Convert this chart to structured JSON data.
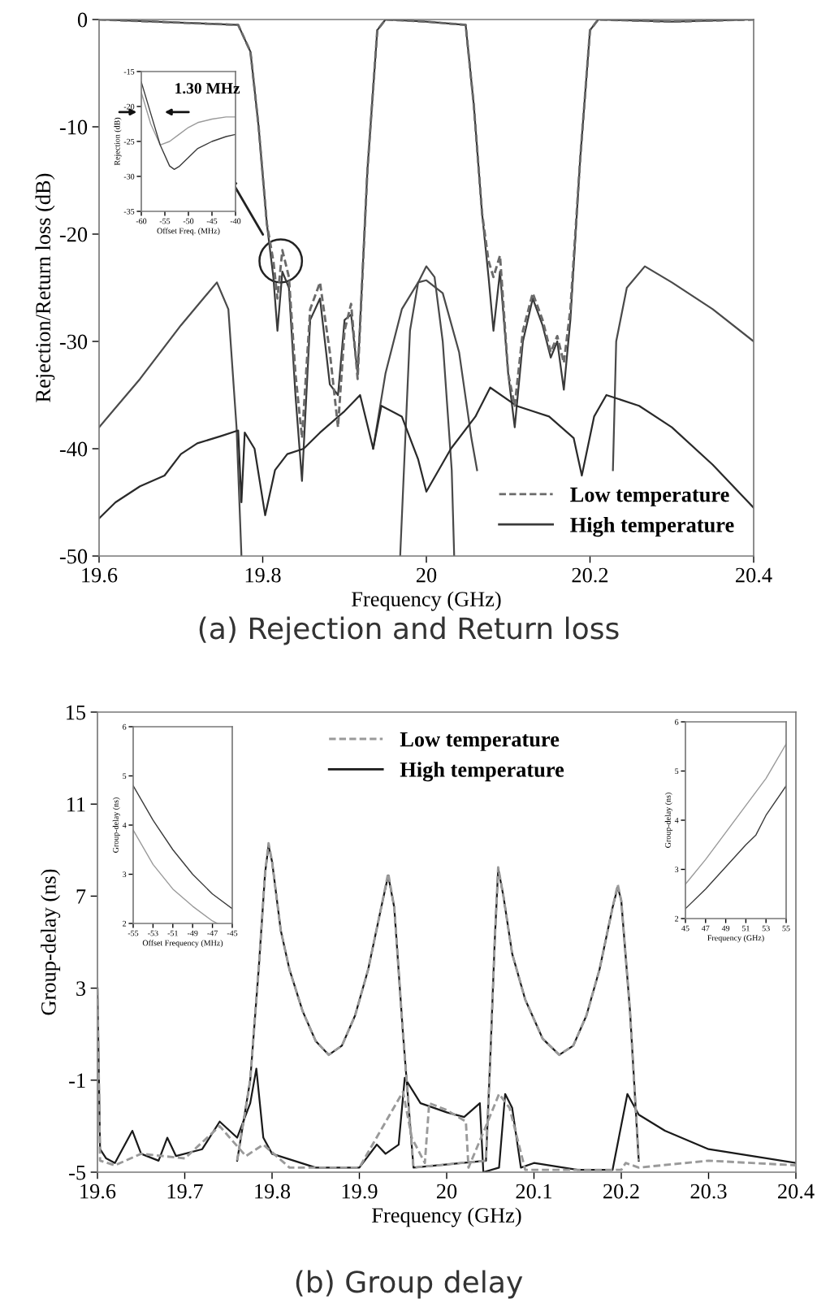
{
  "chart_data": [
    {
      "type": "line",
      "title": "(a) Rejection and Return loss",
      "xlabel": "Frequency (GHz)",
      "ylabel": "Rejection/Return loss (dB)",
      "xlim": [
        19.6,
        20.4
      ],
      "xticks": [
        19.6,
        19.8,
        20,
        20.2,
        20.4
      ],
      "ylim": [
        -50,
        0
      ],
      "yticks": [
        -50,
        -40,
        -30,
        -20,
        -10,
        0
      ],
      "grid": false,
      "legend": "bottom right",
      "series": [
        {
          "name": "Low temperature",
          "color": "#6a6a6a",
          "line_style": "dashed",
          "x": [
            19.6,
            19.7,
            19.77,
            19.785,
            19.795,
            19.805,
            19.813,
            19.818,
            19.824,
            19.832,
            19.84,
            19.848,
            19.858,
            19.87,
            19.882,
            19.892,
            19.9,
            19.908,
            19.916,
            19.928,
            19.94,
            19.95,
            20.0,
            20.048,
            20.058,
            20.068,
            20.076,
            20.082,
            20.09,
            20.1,
            20.108,
            20.118,
            20.13,
            20.142,
            20.152,
            20.16,
            20.168,
            20.176,
            20.188,
            20.2,
            20.21,
            20.3,
            20.4
          ],
          "values": [
            0,
            -0.3,
            -0.5,
            -3,
            -10,
            -19,
            -22.5,
            -26,
            -21.5,
            -24,
            -33,
            -39,
            -27,
            -24.5,
            -31,
            -38,
            -29,
            -26.5,
            -33.5,
            -14,
            -1,
            0,
            -0.2,
            -0.5,
            -8,
            -18,
            -22.5,
            -24,
            -22,
            -33,
            -36,
            -29,
            -25.5,
            -28,
            -31,
            -29.5,
            -32,
            -27,
            -13,
            -1,
            0,
            -0.2,
            0
          ]
        },
        {
          "name": "High temperature",
          "color": "#3a3a3a",
          "line_style": "solid",
          "x": [
            19.6,
            19.7,
            19.77,
            19.785,
            19.795,
            19.805,
            19.813,
            19.818,
            19.824,
            19.832,
            19.84,
            19.848,
            19.858,
            19.87,
            19.882,
            19.892,
            19.9,
            19.908,
            19.916,
            19.928,
            19.94,
            19.95,
            20.0,
            20.048,
            20.058,
            20.068,
            20.076,
            20.082,
            20.09,
            20.1,
            20.108,
            20.118,
            20.13,
            20.142,
            20.152,
            20.16,
            20.168,
            20.176,
            20.188,
            20.2,
            20.21,
            20.3,
            20.4
          ],
          "values": [
            0,
            -0.3,
            -0.5,
            -3,
            -10,
            -19,
            -24,
            -29,
            -23.5,
            -25,
            -35,
            -43,
            -28,
            -26,
            -34,
            -35,
            -28,
            -27.5,
            -33,
            -14,
            -1,
            0,
            -0.2,
            -0.5,
            -8,
            -18,
            -24,
            -29,
            -23.5,
            -33,
            -38,
            -30,
            -26,
            -28.5,
            -31.5,
            -30,
            -34.5,
            -28,
            -13,
            -1,
            0,
            -0.2,
            0
          ]
        },
        {
          "color": "#4a4a4a",
          "line_style": "solid",
          "x": [
            19.6,
            19.65,
            19.7,
            19.744,
            19.758,
            19.768,
            19.774
          ],
          "values": [
            -38,
            -33.5,
            -28.5,
            -24.5,
            -27,
            -38,
            -50
          ]
        },
        {
          "color": "#4a4a4a",
          "line_style": "solid",
          "x": [
            19.968,
            19.98,
            19.99,
            20.0,
            20.01,
            20.02,
            20.031,
            20.034
          ],
          "values": [
            -50,
            -29,
            -24.5,
            -23,
            -24,
            -30,
            -42,
            -50
          ]
        },
        {
          "color": "#4a4a4a",
          "line_style": "solid",
          "x": [
            19.935,
            19.95,
            19.97,
            19.99,
            20.0,
            20.02,
            20.04,
            20.055,
            20.062
          ],
          "values": [
            -40,
            -33,
            -27,
            -24.5,
            -24.3,
            -25.5,
            -31,
            -39,
            -42
          ]
        },
        {
          "color": "#4a4a4a",
          "line_style": "solid",
          "x": [
            20.228,
            20.232,
            20.245,
            20.267,
            20.3,
            20.35,
            20.4
          ],
          "values": [
            -42,
            -30,
            -25,
            -23,
            -24.5,
            -27,
            -30
          ]
        },
        {
          "color": "#2a2a2a",
          "line_style": "solid",
          "x": [
            19.6,
            19.62,
            19.65,
            19.68,
            19.7,
            19.72,
            19.75,
            19.77,
            19.774,
            19.778,
            19.79,
            19.803,
            19.815,
            19.83,
            19.85,
            19.87,
            19.9,
            19.919,
            19.935,
            19.945,
            19.97,
            19.99,
            20.0,
            20.03,
            20.06,
            20.078,
            20.11,
            20.15,
            20.18,
            20.19,
            20.205,
            20.22,
            20.26,
            20.3,
            20.35,
            20.4
          ],
          "values": [
            -46.5,
            -45,
            -43.5,
            -42.5,
            -40.5,
            -39.5,
            -38.8,
            -38.3,
            -45,
            -38.5,
            -40,
            -46.2,
            -42,
            -40.5,
            -40,
            -38.5,
            -36.5,
            -35,
            -40,
            -36,
            -37,
            -41,
            -44,
            -40,
            -37,
            -34.3,
            -36,
            -37,
            -39,
            -42.5,
            -37,
            -35,
            -36,
            -38,
            -41.5,
            -45.5
          ]
        }
      ]
    },
    {
      "type": "line",
      "xlabel": "Offset Freq. (MHz)",
      "ylabel": "Rejection (dB)",
      "xlim": [
        -60,
        -40
      ],
      "xticks": [
        -60,
        -55,
        -50,
        -45,
        -40
      ],
      "ylim": [
        -35,
        -15
      ],
      "yticks": [
        -35,
        -30,
        -25,
        -20,
        -15
      ],
      "grid": false,
      "annotations": [
        "1.30 MHz"
      ],
      "series": [
        {
          "color": "#9a9a9a",
          "line_style": "solid",
          "x": [
            -60,
            -58,
            -56,
            -54,
            -52,
            -50,
            -48,
            -45,
            -42,
            -40
          ],
          "values": [
            -18,
            -22.5,
            -25.5,
            -25,
            -24,
            -23,
            -22.3,
            -21.8,
            -21.5,
            -21.5
          ]
        },
        {
          "color": "#3a3a3a",
          "line_style": "solid",
          "x": [
            -60,
            -58,
            -56,
            -54,
            -53,
            -52,
            -50,
            -48,
            -45,
            -42,
            -40
          ],
          "values": [
            -16.5,
            -21,
            -25.5,
            -28.5,
            -29,
            -28.6,
            -27.3,
            -26,
            -25,
            -24.3,
            -24
          ]
        }
      ]
    },
    {
      "type": "line",
      "title": "(b) Group delay",
      "xlabel": "Frequency (GHz)",
      "ylabel": "Group-delay (ns)",
      "xlim": [
        19.6,
        20.4
      ],
      "xticks": [
        19.6,
        19.7,
        19.8,
        19.9,
        20,
        20.1,
        20.2,
        20.3,
        20.4
      ],
      "ylim": [
        -5,
        15
      ],
      "yticks": [
        -5,
        -1,
        3,
        7,
        11,
        15
      ],
      "grid": false,
      "legend": "top",
      "series": [
        {
          "name": "Low temperature",
          "color": "#9a9a9a",
          "line_style": "dashed",
          "x": [
            19.76,
            19.775,
            19.785,
            19.792,
            19.796,
            19.8,
            19.81,
            19.82,
            19.835,
            19.85,
            19.865,
            19.88,
            19.895,
            19.91,
            19.925,
            19.933,
            19.94,
            19.95,
            19.962,
            20.045,
            20.05,
            20.055,
            20.059,
            20.065,
            20.075,
            20.09,
            20.11,
            20.129,
            20.145,
            20.16,
            20.175,
            20.19,
            20.196,
            20.2,
            20.21,
            20.22
          ],
          "values": [
            -4.5,
            -1,
            4,
            8,
            9.3,
            8.5,
            5.5,
            3.8,
            2,
            0.7,
            0.1,
            0.5,
            1.8,
            3.8,
            6.5,
            8,
            6.5,
            1,
            -4.8,
            -4.5,
            0,
            5,
            8.25,
            7,
            4.5,
            2.5,
            0.8,
            0.1,
            0.5,
            1.8,
            3.8,
            6.5,
            7.5,
            6.8,
            2,
            -4.5
          ]
        },
        {
          "color": "#1a1a1a",
          "line_style": "solid",
          "x": [
            19.76,
            19.775,
            19.785,
            19.792,
            19.796,
            19.8,
            19.81,
            19.82,
            19.835,
            19.85,
            19.865,
            19.88,
            19.895,
            19.91,
            19.925,
            19.933,
            19.94,
            19.95,
            19.962,
            20.045,
            20.05,
            20.055,
            20.059,
            20.065,
            20.075,
            20.09,
            20.11,
            20.129,
            20.145,
            20.16,
            20.175,
            20.19,
            20.196,
            20.2,
            20.21,
            20.22
          ],
          "values": [
            -4.5,
            -1,
            4,
            8,
            9.2,
            8.5,
            5.5,
            3.8,
            2,
            0.7,
            0.1,
            0.5,
            1.8,
            3.8,
            6.5,
            7.9,
            6.5,
            1,
            -4.8,
            -4.5,
            0,
            5,
            8.2,
            7,
            4.5,
            2.5,
            0.8,
            0.1,
            0.5,
            1.8,
            3.8,
            6.5,
            7.4,
            6.8,
            2,
            -4.5
          ]
        },
        {
          "color": "#9a9a9a",
          "line_style": "dashed",
          "x": [
            19.6,
            19.603,
            19.62,
            19.65,
            19.7,
            19.74,
            19.77,
            19.79,
            19.82,
            19.9,
            19.95,
            19.96,
            19.975,
            19.98,
            20.0,
            20.022,
            20.025,
            20.045,
            20.06,
            20.072,
            20.09,
            20.15,
            20.2,
            20.205,
            20.22,
            20.3,
            20.4
          ],
          "values": [
            3,
            -4.5,
            -4.7,
            -4.2,
            -4.4,
            -3,
            -4.3,
            -3.8,
            -4.8,
            -4.8,
            -1.5,
            -3.5,
            -4.6,
            -2,
            -2.3,
            -2.8,
            -4.8,
            -3,
            -1.6,
            -2.2,
            -4.9,
            -4.9,
            -4.9,
            -4.6,
            -4.8,
            -4.5,
            -4.7
          ]
        },
        {
          "name": "High temperature",
          "color": "#1a1a1a",
          "line_style": "solid",
          "x": [
            19.6,
            19.603,
            19.61,
            19.62,
            19.64,
            19.65,
            19.67,
            19.68,
            19.69,
            19.72,
            19.74,
            19.76,
            19.775,
            19.782,
            19.79,
            19.8,
            19.85,
            19.9,
            19.92,
            19.93,
            19.945,
            19.952,
            19.97,
            20.0,
            20.02,
            20.038,
            20.042,
            20.06,
            20.067,
            20.075,
            20.085,
            20.1,
            20.15,
            20.19,
            20.207,
            20.22,
            20.25,
            20.3,
            20.35,
            20.4
          ],
          "values": [
            3,
            -4,
            -4.4,
            -4.6,
            -3.2,
            -4.2,
            -4.5,
            -3.5,
            -4.3,
            -4,
            -2.8,
            -3.5,
            -2,
            -0.5,
            -3.5,
            -4.2,
            -4.8,
            -4.8,
            -3.8,
            -4.2,
            -3.8,
            -0.9,
            -2,
            -2.4,
            -2.6,
            -2,
            -5,
            -4.8,
            -1.6,
            -2.2,
            -4.8,
            -4.6,
            -4.9,
            -4.9,
            -1.6,
            -2.5,
            -3.2,
            -4,
            -4.3,
            -4.6
          ]
        }
      ]
    },
    {
      "type": "line",
      "xlabel": "Offset Frequency (MHz)",
      "ylabel": "Group-delay (ns)",
      "xlim": [
        -55,
        -45
      ],
      "xticks": [
        -55,
        -53,
        -51,
        -49,
        -47,
        -45
      ],
      "ylim": [
        2,
        6
      ],
      "yticks": [
        2,
        3,
        4,
        5,
        6
      ],
      "grid": false,
      "series": [
        {
          "color": "#3a3a3a",
          "line_style": "solid",
          "x": [
            -55,
            -53,
            -51,
            -49,
            -47,
            -45
          ],
          "values": [
            4.8,
            4.1,
            3.5,
            3.0,
            2.6,
            2.3
          ]
        },
        {
          "color": "#9a9a9a",
          "line_style": "solid",
          "x": [
            -55,
            -53,
            -51,
            -49,
            -47,
            -46.5
          ],
          "values": [
            3.9,
            3.2,
            2.7,
            2.35,
            2.05,
            2.0
          ]
        }
      ]
    },
    {
      "type": "line",
      "xlabel": "Frequency (GHz)",
      "ylabel": "Group-delay (ns)",
      "xlim": [
        45,
        55
      ],
      "xticks": [
        45,
        47,
        49,
        51,
        53,
        55
      ],
      "ylim": [
        2,
        6
      ],
      "yticks": [
        2,
        3,
        4,
        5,
        6
      ],
      "grid": false,
      "series": [
        {
          "color": "#9a9a9a",
          "line_style": "solid",
          "x": [
            45,
            47,
            49,
            51,
            53,
            55
          ],
          "values": [
            2.7,
            3.2,
            3.75,
            4.3,
            4.85,
            5.55
          ]
        },
        {
          "color": "#3a3a3a",
          "line_style": "solid",
          "x": [
            45,
            47,
            49,
            51,
            52,
            53,
            55
          ],
          "values": [
            2.2,
            2.6,
            3.05,
            3.5,
            3.7,
            4.1,
            4.7
          ]
        }
      ]
    }
  ]
}
